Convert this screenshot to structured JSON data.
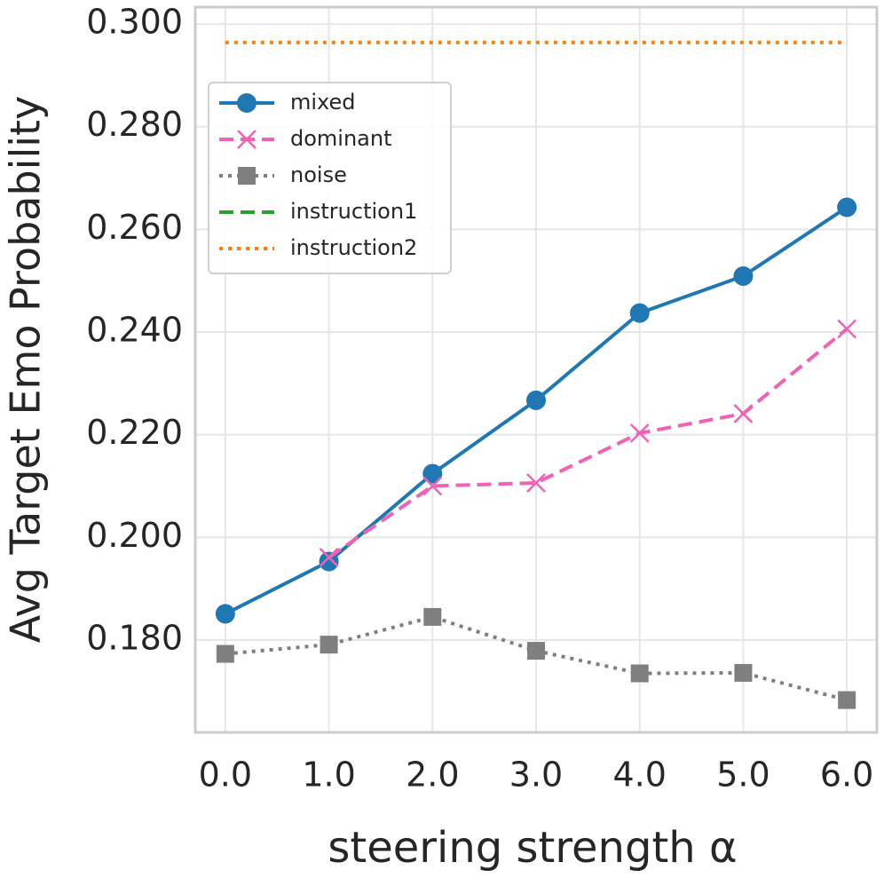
{
  "chart_data": {
    "type": "line",
    "xlabel": "steering strength α",
    "ylabel": "Avg Target Emo Probability",
    "x": [
      0,
      1,
      2,
      3,
      4,
      5,
      6
    ],
    "xlim": [
      -0.29,
      6.29
    ],
    "ylim": [
      0.162,
      0.3033
    ],
    "xticks": [
      {
        "value": 0,
        "label": "0.0"
      },
      {
        "value": 1,
        "label": "1.0"
      },
      {
        "value": 2,
        "label": "2.0"
      },
      {
        "value": 3,
        "label": "3.0"
      },
      {
        "value": 4,
        "label": "4.0"
      },
      {
        "value": 5,
        "label": "5.0"
      },
      {
        "value": 6,
        "label": "6.0"
      }
    ],
    "yticks": [
      {
        "value": 0.18,
        "label": "0.180"
      },
      {
        "value": 0.2,
        "label": "0.200"
      },
      {
        "value": 0.22,
        "label": "0.220"
      },
      {
        "value": 0.24,
        "label": "0.240"
      },
      {
        "value": 0.26,
        "label": "0.260"
      },
      {
        "value": 0.28,
        "label": "0.280"
      },
      {
        "value": 0.3,
        "label": "0.300"
      }
    ],
    "grid": true,
    "legend": "upper left",
    "series": [
      {
        "name": "mixed",
        "color": "#1f77b4",
        "dash": "solid",
        "marker": "circle",
        "values": [
          0.1851,
          0.1953,
          0.2124,
          0.2267,
          0.2437,
          0.2509,
          0.2643
        ]
      },
      {
        "name": "dominant",
        "color": "#f062b4",
        "dash": "dashed",
        "marker": "x",
        "values": [
          null,
          0.1961,
          0.21,
          0.2106,
          0.2203,
          0.2241,
          0.2406
        ]
      },
      {
        "name": "noise",
        "color": "#7f7f7f",
        "dash": "dotted",
        "marker": "square",
        "values": [
          0.1773,
          0.1791,
          0.1845,
          0.1779,
          0.1735,
          0.1736,
          0.1683
        ]
      },
      {
        "name": "instruction1",
        "color": "#2ca02c",
        "dash": "dashed",
        "marker": "none",
        "values": [
          null,
          null,
          null,
          null,
          null,
          null,
          null
        ]
      },
      {
        "name": "instruction2",
        "color": "#ff7f0e",
        "dash": "dotted",
        "marker": "none",
        "values": [
          0.2964,
          0.2964,
          0.2964,
          0.2964,
          0.2964,
          0.2964,
          0.2964
        ]
      }
    ]
  }
}
